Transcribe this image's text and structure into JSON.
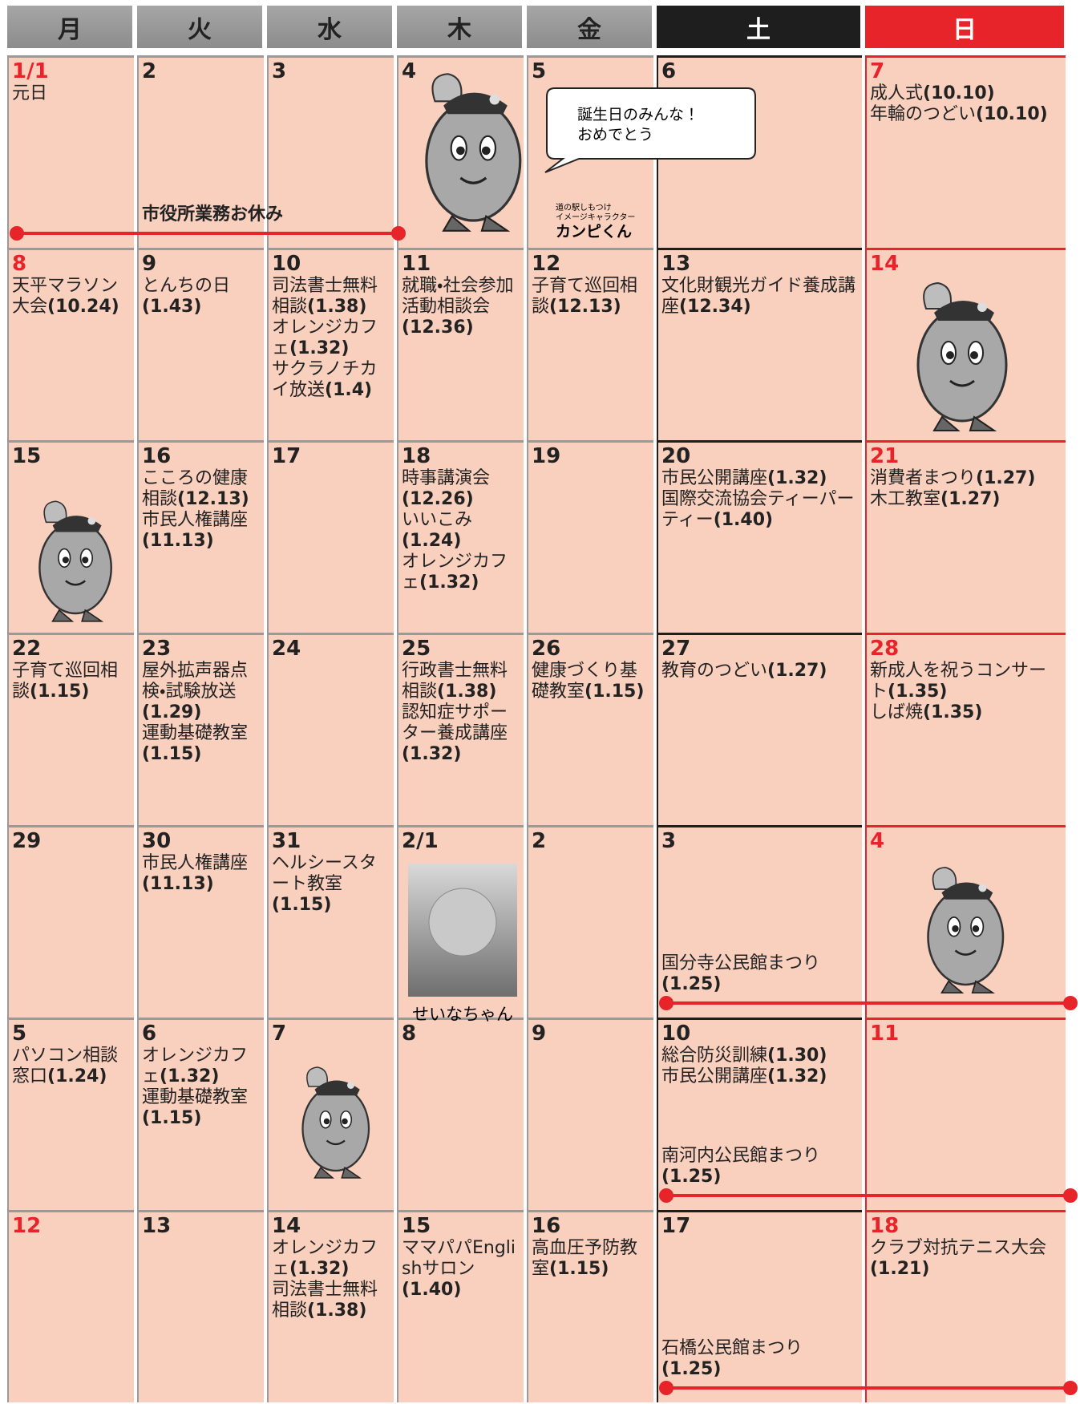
{
  "header": {
    "weekdays": [
      "月",
      "火",
      "水",
      "木",
      "金",
      "土",
      "日"
    ]
  },
  "mascot": {
    "bubble_line1": "誕生日のみんな！",
    "bubble_line2": "おめでとう",
    "caption1": "道の駅しもつけ",
    "caption2": "イメージキャラクター",
    "name": "カンピくん"
  },
  "photo": {
    "caption": "せいなちゃん"
  },
  "weeks": [
    {
      "days": [
        {
          "date": "1/1",
          "holiday": true,
          "events": [
            {
              "name": "元日"
            }
          ]
        },
        {
          "date": "2",
          "events": []
        },
        {
          "date": "3",
          "events": []
        },
        {
          "date": "4",
          "events": []
        },
        {
          "date": "5",
          "events": []
        },
        {
          "date": "6",
          "events": []
        },
        {
          "date": "7",
          "events": [
            {
              "name": "成人式",
              "code": "(10.10)"
            },
            {
              "name": "年輪のつどい",
              "code": "(10.10)"
            }
          ]
        }
      ],
      "bar": {
        "name": "市役所業務お休み"
      }
    },
    {
      "days": [
        {
          "date": "8",
          "holiday": true,
          "events": [
            {
              "name": "天平マラソン大会",
              "code": "(10.24)"
            }
          ]
        },
        {
          "date": "9",
          "events": [
            {
              "name": "とんちの日",
              "code": "(1.43)"
            }
          ]
        },
        {
          "date": "10",
          "events": [
            {
              "name": "司法書士無料相談",
              "code": "(1.38)"
            },
            {
              "name": "オレンジカフェ",
              "code": "(1.32)"
            },
            {
              "name": "サクラノチカイ放送",
              "code": "(1.4)"
            }
          ]
        },
        {
          "date": "11",
          "events": [
            {
              "name": "就職・社会参加活動相談会",
              "code": "(12.36)"
            }
          ]
        },
        {
          "date": "12",
          "events": [
            {
              "name": "子育て巡回相談",
              "code": "(12.13)"
            }
          ]
        },
        {
          "date": "13",
          "events": [
            {
              "name": "文化財観光ガイド養成講座",
              "code": "(12.34)"
            }
          ]
        },
        {
          "date": "14",
          "events": []
        }
      ]
    },
    {
      "days": [
        {
          "date": "15",
          "events": []
        },
        {
          "date": "16",
          "events": [
            {
              "name": "こころの健康相談",
              "code": "(12.13)"
            },
            {
              "name": "市民人権講座",
              "code": "(11.13)"
            }
          ]
        },
        {
          "date": "17",
          "events": []
        },
        {
          "date": "18",
          "events": [
            {
              "name": "時事講演会",
              "code": "(12.26)"
            },
            {
              "name": "いいこみ",
              "code": "(1.24)"
            },
            {
              "name": "オレンジカフェ",
              "code": "(1.32)"
            }
          ]
        },
        {
          "date": "19",
          "events": []
        },
        {
          "date": "20",
          "events": [
            {
              "name": "市民公開講座",
              "code": "(1.32)"
            },
            {
              "name": "国際交流協会ティーパーティー",
              "code": "(1.40)"
            }
          ]
        },
        {
          "date": "21",
          "events": [
            {
              "name": "消費者まつり",
              "code": "(1.27)"
            },
            {
              "name": "木工教室",
              "code": "(1.27)"
            }
          ]
        }
      ]
    },
    {
      "days": [
        {
          "date": "22",
          "events": [
            {
              "name": "子育て巡回相談",
              "code": "(1.15)"
            }
          ]
        },
        {
          "date": "23",
          "events": [
            {
              "name": "屋外拡声器点検・試験放送",
              "code": "(1.29)"
            },
            {
              "name": "運動基礎教室",
              "code": "(1.15)"
            }
          ]
        },
        {
          "date": "24",
          "events": []
        },
        {
          "date": "25",
          "events": [
            {
              "name": "行政書士無料相談",
              "code": "(1.38)"
            },
            {
              "name": "認知症サポーター養成講座",
              "code": "(1.32)"
            }
          ]
        },
        {
          "date": "26",
          "events": [
            {
              "name": "健康づくり基礎教室",
              "code": "(1.15)"
            }
          ]
        },
        {
          "date": "27",
          "events": [
            {
              "name": "教育のつどい",
              "code": "(1.27)"
            }
          ]
        },
        {
          "date": "28",
          "events": [
            {
              "name": "新成人を祝うコンサート",
              "code": "(1.35)"
            },
            {
              "name": "しば焼",
              "code": "(1.35)"
            }
          ]
        }
      ]
    },
    {
      "days": [
        {
          "date": "29",
          "events": []
        },
        {
          "date": "30",
          "events": [
            {
              "name": "市民人権講座",
              "code": "(11.13)"
            }
          ]
        },
        {
          "date": "31",
          "events": [
            {
              "name": "ヘルシースタート教室",
              "code": "(1.15)"
            }
          ]
        },
        {
          "date": "2/1",
          "events": []
        },
        {
          "date": "2",
          "events": []
        },
        {
          "date": "3",
          "events": []
        },
        {
          "date": "4",
          "events": []
        }
      ],
      "bar": {
        "name": "国分寺公民館まつり",
        "code": "(1.25)"
      }
    },
    {
      "days": [
        {
          "date": "5",
          "events": [
            {
              "name": "パソコン相談窓口",
              "code": "(1.24)"
            }
          ]
        },
        {
          "date": "6",
          "events": [
            {
              "name": "オレンジカフェ",
              "code": "(1.32)"
            },
            {
              "name": "運動基礎教室",
              "code": "(1.15)"
            }
          ]
        },
        {
          "date": "7",
          "events": []
        },
        {
          "date": "8",
          "events": []
        },
        {
          "date": "9",
          "events": []
        },
        {
          "date": "10",
          "events": [
            {
              "name": "総合防災訓練",
              "code": "(1.30)"
            },
            {
              "name": "市民公開講座",
              "code": "(1.32)"
            }
          ]
        },
        {
          "date": "11",
          "events": []
        }
      ],
      "bar": {
        "name": "南河内公民館まつり",
        "code": "(1.25)"
      }
    },
    {
      "days": [
        {
          "date": "12",
          "holiday": true,
          "events": []
        },
        {
          "date": "13",
          "events": []
        },
        {
          "date": "14",
          "events": [
            {
              "name": "オレンジカフェ",
              "code": "(1.32)"
            },
            {
              "name": "司法書士無料相談",
              "code": "(1.38)"
            }
          ]
        },
        {
          "date": "15",
          "events": [
            {
              "name": "ママパパEnglishサロン",
              "code": "(1.40)"
            }
          ]
        },
        {
          "date": "16",
          "events": [
            {
              "name": "高血圧予防教室",
              "code": "(1.15)"
            }
          ]
        },
        {
          "date": "17",
          "events": []
        },
        {
          "date": "18",
          "events": [
            {
              "name": "クラブ対抗テニス大会",
              "code": "(1.21)"
            }
          ]
        }
      ],
      "bar": {
        "name": "石橋公民館まつり",
        "code": "(1.25)"
      }
    }
  ]
}
